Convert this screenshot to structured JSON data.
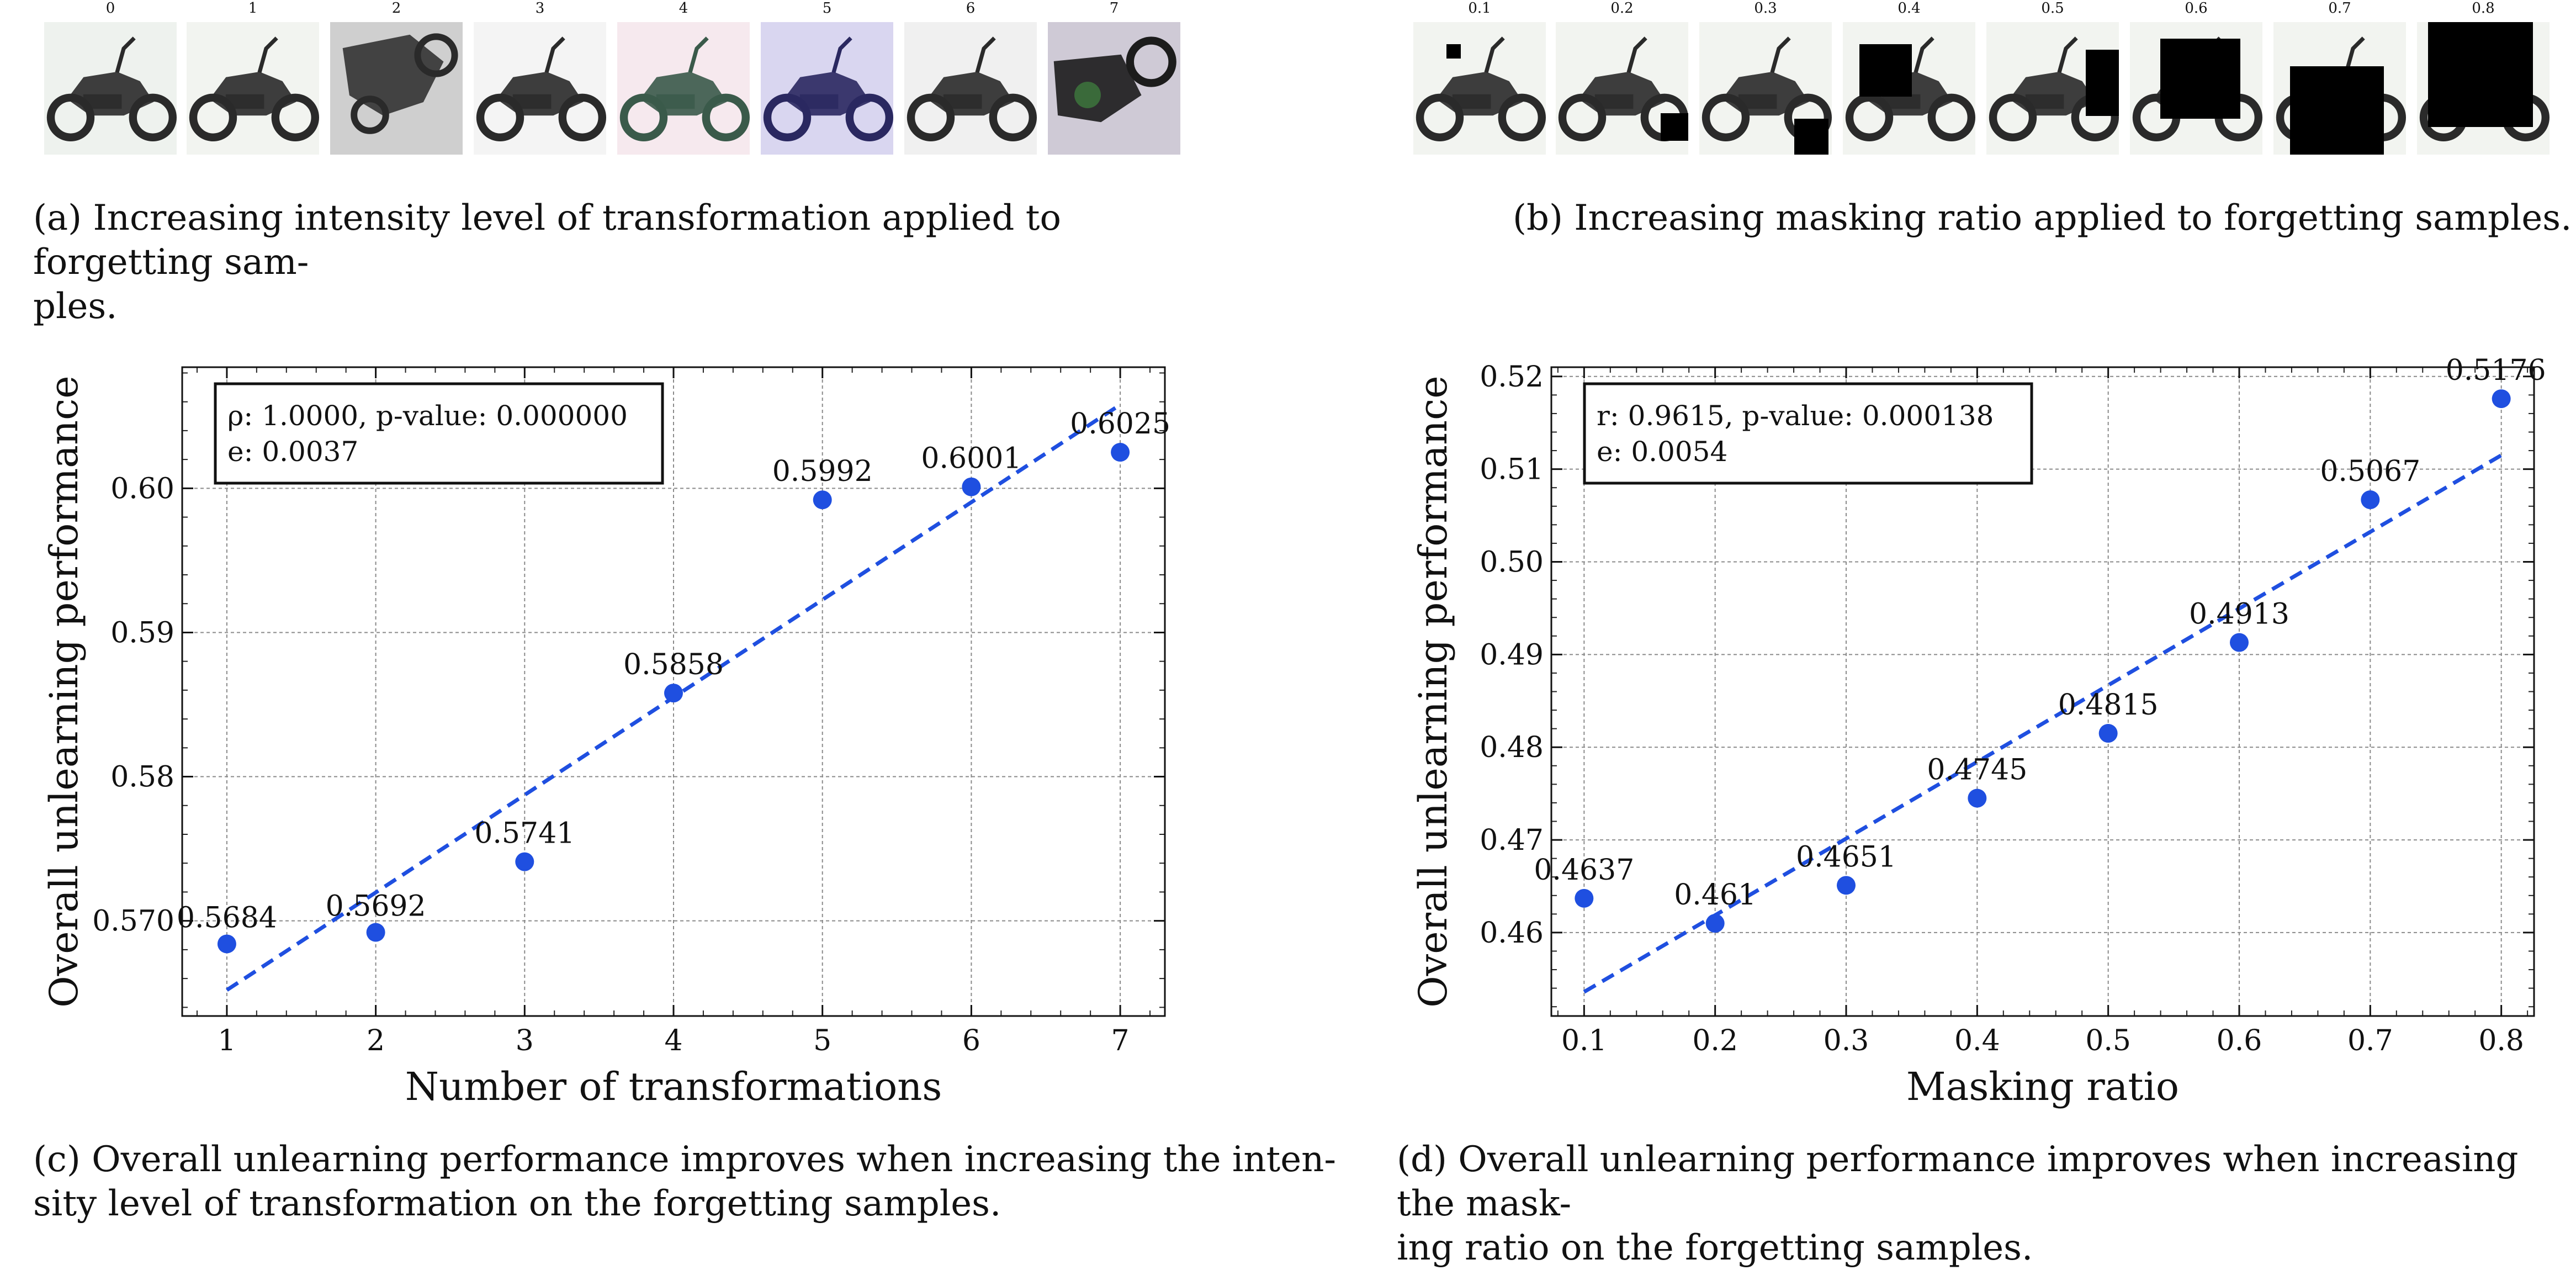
{
  "panel_a": {
    "labels": [
      "0",
      "1",
      "2",
      "3",
      "4",
      "5",
      "6",
      "7"
    ],
    "caption_line1": "(a) Increasing intensity level of transformation applied to forgetting sam-",
    "caption_line2": "ples."
  },
  "panel_b": {
    "labels": [
      "0.1",
      "0.2",
      "0.3",
      "0.4",
      "0.5",
      "0.6",
      "0.7",
      "0.8"
    ],
    "caption": "(b) Increasing masking ratio applied to forgetting samples."
  },
  "panel_c": {
    "caption_line1": "(c) Overall unlearning performance improves when increasing the inten-",
    "caption_line2": "sity level of transformation on the forgetting samples."
  },
  "panel_d": {
    "caption_line1": "(d) Overall unlearning performance improves when increasing the mask-",
    "caption_line2": "ing ratio on the forgetting samples."
  },
  "colors": {
    "point": "#1f4fe0",
    "fit": "#1f4fe0",
    "grid": "#8a8a8a"
  },
  "chart_data": [
    {
      "type": "scatter",
      "xlabel": "Number of transformations",
      "ylabel": "Overall unlearning performance",
      "x": [
        1,
        2,
        3,
        4,
        5,
        6,
        7
      ],
      "y": [
        0.5684,
        0.5692,
        0.5741,
        0.5858,
        0.5992,
        0.6001,
        0.6025
      ],
      "point_labels": [
        "0.5684",
        "0.5692",
        "0.5741",
        "0.5858",
        "0.5992",
        "0.6001",
        "0.6025"
      ],
      "fit": {
        "x": [
          1,
          7
        ],
        "y": [
          0.5652,
          0.6058
        ]
      },
      "xlim": [
        0.7,
        7.3
      ],
      "ylim": [
        0.5634,
        0.6084
      ],
      "xticks": [
        1,
        2,
        3,
        4,
        5,
        6,
        7
      ],
      "xtick_labels": [
        "1",
        "2",
        "3",
        "4",
        "5",
        "6",
        "7"
      ],
      "yticks": [
        0.57,
        0.58,
        0.59,
        0.6
      ],
      "ytick_labels": [
        "0.570",
        "0.58",
        "0.59",
        "0.60"
      ],
      "annotation_line1": "ρ: 1.0000, p-value: 0.000000",
      "annotation_line2": "e: 0.0037",
      "grid": true
    },
    {
      "type": "scatter",
      "xlabel": "Masking ratio",
      "ylabel": "Overall unlearning performance",
      "x": [
        0.1,
        0.2,
        0.3,
        0.4,
        0.5,
        0.6,
        0.7,
        0.8
      ],
      "y": [
        0.4637,
        0.461,
        0.4651,
        0.4745,
        0.4815,
        0.4913,
        0.5067,
        0.5176
      ],
      "point_labels": [
        "0.4637",
        "0.461",
        "0.4651",
        "0.4745",
        "0.4815",
        "0.4913",
        "0.5067",
        "0.5176"
      ],
      "fit": {
        "x": [
          0.1,
          0.8
        ],
        "y": [
          0.4536,
          0.5115
        ]
      },
      "xlim": [
        0.075,
        0.825
      ],
      "ylim": [
        0.451,
        0.521
      ],
      "xticks": [
        0.1,
        0.2,
        0.3,
        0.4,
        0.5,
        0.6,
        0.7,
        0.8
      ],
      "xtick_labels": [
        "0.1",
        "0.2",
        "0.3",
        "0.4",
        "0.5",
        "0.6",
        "0.7",
        "0.8"
      ],
      "yticks": [
        0.46,
        0.47,
        0.48,
        0.49,
        0.5,
        0.51,
        0.52
      ],
      "ytick_labels": [
        "0.46",
        "0.47",
        "0.48",
        "0.49",
        "0.50",
        "0.51",
        "0.52"
      ],
      "annotation_line1": "r: 0.9615, p-value: 0.000138",
      "annotation_line2": "e: 0.0054",
      "grid": true
    }
  ]
}
